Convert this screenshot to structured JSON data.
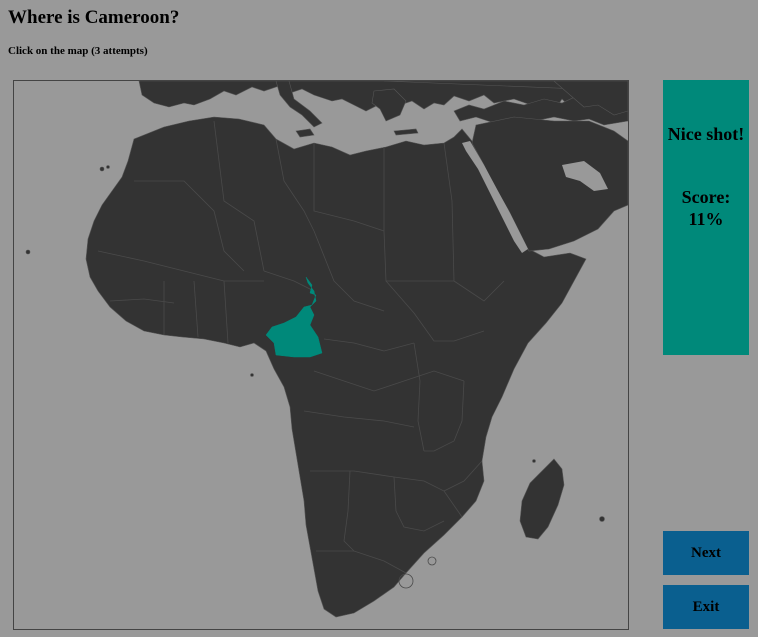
{
  "header": {
    "title": "Where is Cameroon?",
    "instructions": "Click on the map (3 attempts)"
  },
  "map": {
    "highlighted_country": "Cameroon",
    "land_color": "#333333",
    "water_color": "#999999",
    "highlight_color": "#00897a"
  },
  "feedback": {
    "message": "Nice shot!",
    "score_label": "Score:",
    "score_value": "11%"
  },
  "buttons": {
    "next_label": "Next",
    "exit_label": "Exit"
  },
  "colors": {
    "panel": "#00897a",
    "button": "#0a5f8f",
    "background": "#999999"
  }
}
